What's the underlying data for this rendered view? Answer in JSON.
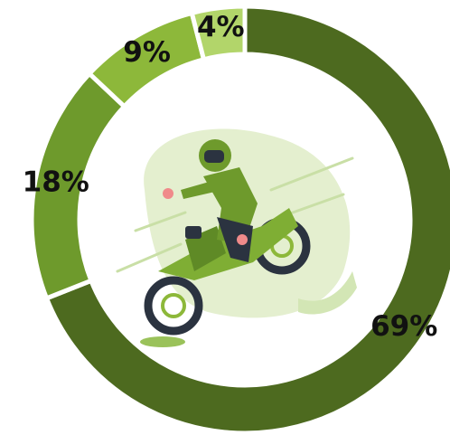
{
  "chart_data": {
    "type": "pie",
    "values": [
      69,
      18,
      9,
      4
    ],
    "value_labels": [
      "69%",
      "18%",
      "9%",
      "4%"
    ],
    "colors": [
      "#4d6a1f",
      "#6e9a2c",
      "#8db83a",
      "#b2d56a"
    ]
  }
}
